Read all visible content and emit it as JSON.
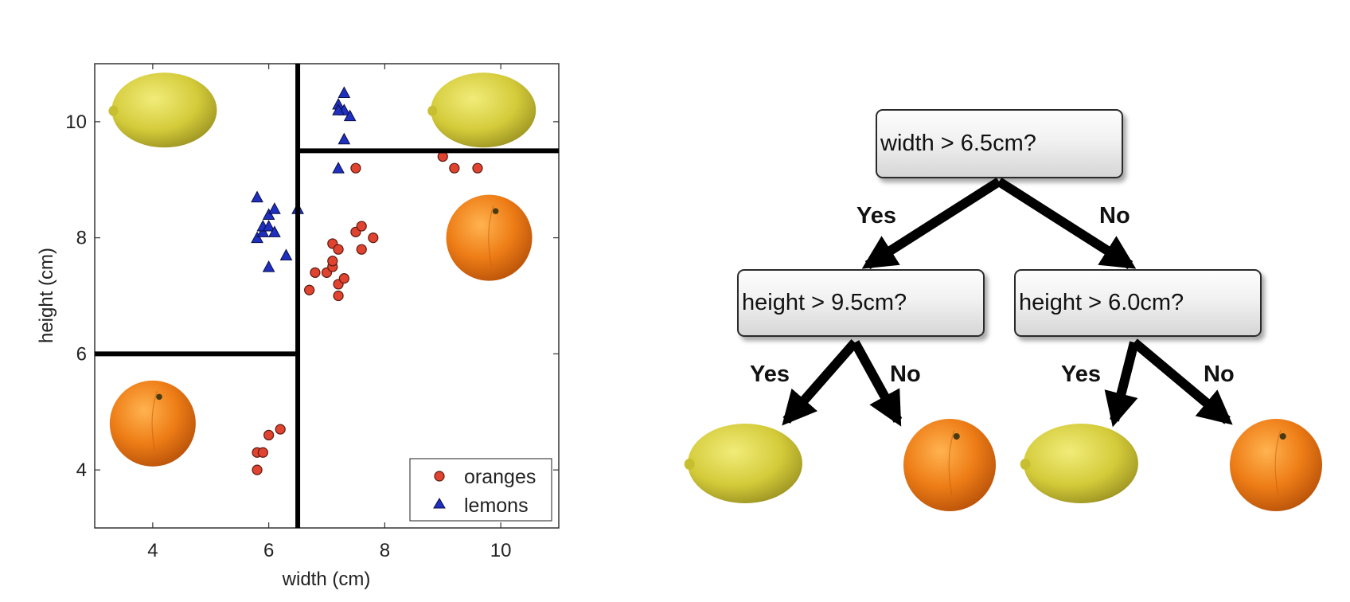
{
  "chart_data": [
    {
      "type": "scatter",
      "xlabel": "width (cm)",
      "ylabel": "height (cm)",
      "xlim": [
        3,
        11
      ],
      "ylim": [
        3,
        11
      ],
      "xticks": [
        4,
        6,
        8,
        10
      ],
      "yticks": [
        4,
        6,
        8,
        10
      ],
      "grid": false,
      "legend_position": "bottom-right",
      "series": [
        {
          "name": "oranges",
          "marker": "circle",
          "color": "#e0432f",
          "points": [
            [
              5.8,
              4.0
            ],
            [
              5.8,
              4.3
            ],
            [
              5.9,
              4.3
            ],
            [
              6.0,
              4.6
            ],
            [
              6.2,
              4.7
            ],
            [
              6.7,
              7.1
            ],
            [
              6.8,
              7.4
            ],
            [
              7.0,
              7.4
            ],
            [
              7.1,
              7.5
            ],
            [
              7.1,
              7.6
            ],
            [
              7.1,
              7.9
            ],
            [
              7.2,
              7.8
            ],
            [
              7.2,
              7.2
            ],
            [
              7.2,
              7.0
            ],
            [
              7.3,
              7.3
            ],
            [
              7.5,
              8.1
            ],
            [
              7.6,
              8.2
            ],
            [
              7.6,
              7.8
            ],
            [
              7.8,
              8.0
            ],
            [
              7.5,
              9.2
            ],
            [
              9.0,
              9.4
            ],
            [
              9.2,
              9.2
            ],
            [
              9.6,
              9.2
            ]
          ]
        },
        {
          "name": "lemons",
          "marker": "triangle",
          "color": "#1f2fbf",
          "points": [
            [
              5.8,
              8.7
            ],
            [
              5.8,
              8.0
            ],
            [
              5.9,
              8.1
            ],
            [
              5.9,
              8.2
            ],
            [
              6.0,
              8.4
            ],
            [
              6.0,
              8.2
            ],
            [
              6.1,
              8.5
            ],
            [
              6.1,
              8.1
            ],
            [
              6.0,
              7.5
            ],
            [
              6.3,
              7.7
            ],
            [
              6.5,
              8.5
            ],
            [
              7.2,
              9.2
            ],
            [
              7.2,
              10.3
            ],
            [
              7.3,
              10.5
            ],
            [
              7.3,
              10.2
            ],
            [
              7.4,
              10.1
            ],
            [
              7.3,
              9.7
            ],
            [
              7.2,
              10.2
            ]
          ]
        }
      ],
      "decision_boundaries": [
        {
          "orientation": "vertical",
          "x": 6.5,
          "y_range": [
            3,
            11
          ]
        },
        {
          "orientation": "horizontal",
          "y": 6.0,
          "x_range": [
            3,
            6.5
          ]
        },
        {
          "orientation": "horizontal",
          "y": 9.5,
          "x_range": [
            6.5,
            11
          ]
        }
      ],
      "region_images": [
        {
          "fruit": "lemon",
          "at": [
            4.2,
            10.2
          ]
        },
        {
          "fruit": "lemon",
          "at": [
            9.7,
            10.2
          ]
        },
        {
          "fruit": "orange",
          "at": [
            9.8,
            8.0
          ]
        },
        {
          "fruit": "orange",
          "at": [
            4.0,
            4.8
          ]
        }
      ]
    },
    {
      "type": "decision-tree",
      "root": {
        "label": "width > 6.5cm?",
        "yes_label": "Yes",
        "no_label": "No",
        "yes": {
          "label": "height > 9.5cm?",
          "yes_label": "Yes",
          "no_label": "No",
          "yes": {
            "leaf": "lemon"
          },
          "no": {
            "leaf": "orange"
          }
        },
        "no": {
          "label": "height > 6.0cm?",
          "yes_label": "Yes",
          "no_label": "No",
          "yes": {
            "leaf": "lemon"
          },
          "no": {
            "leaf": "orange"
          }
        }
      }
    }
  ],
  "colors": {
    "orange_fill": "#ee7d16",
    "lemon_fill": "#d4cb3a",
    "boundary": "#000000"
  }
}
